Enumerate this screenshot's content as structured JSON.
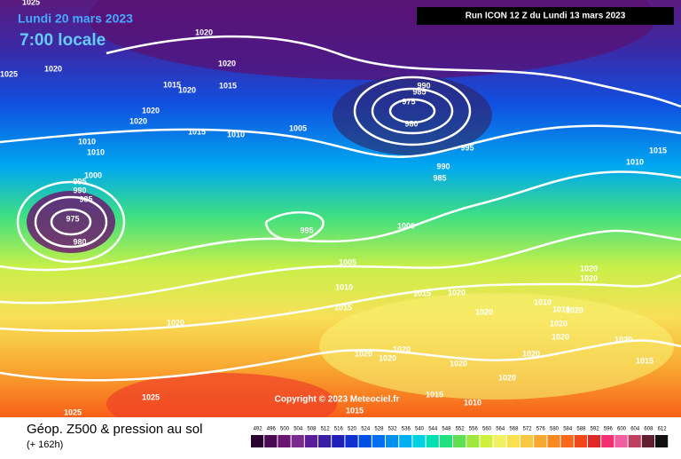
{
  "header": {
    "date": "Lundi 20 mars 2023",
    "time": "7:00 locale",
    "run": "Run ICON 12 Z du Lundi 13 mars 2023"
  },
  "copyright": "Copyright © 2023 Meteociel.fr",
  "footer": {
    "title": "Géop. Z500 & pression au sol",
    "lead": "(+ 162h)"
  },
  "isobar_labels": [
    "1025",
    "1020",
    "1020",
    "1025",
    "1020",
    "1015",
    "1020",
    "1015",
    "1020",
    "1020",
    "1015",
    "1010",
    "1005",
    "1010",
    "1010",
    "1000",
    "995",
    "990",
    "985",
    "975",
    "980",
    "990",
    "985",
    "975",
    "980",
    "995",
    "990",
    "985",
    "995",
    "1000",
    "1005",
    "1010",
    "1015",
    "1015",
    "1020",
    "1020",
    "1020",
    "1020",
    "1010",
    "1015",
    "1020",
    "1020",
    "1020",
    "1020",
    "1020",
    "1020",
    "1020",
    "1020",
    "1020",
    "1015",
    "1020",
    "1015",
    "1010",
    "1015",
    "1025",
    "1025",
    "1010",
    "1010",
    "1020"
  ],
  "legend": {
    "labels": [
      492,
      496,
      500,
      504,
      508,
      512,
      516,
      520,
      524,
      528,
      532,
      536,
      540,
      544,
      548,
      552,
      556,
      560,
      564,
      568,
      572,
      576,
      580,
      584,
      588,
      592,
      596,
      600,
      604,
      608,
      612
    ],
    "colors": [
      "#2a0030",
      "#4a0a52",
      "#6a1670",
      "#7a2a8e",
      "#5a1e9a",
      "#3a1ea8",
      "#2020b8",
      "#1030d0",
      "#0050e8",
      "#0070f0",
      "#0090f0",
      "#00b0f0",
      "#00d0e0",
      "#00e0b0",
      "#20e080",
      "#60e050",
      "#a0e840",
      "#d0f040",
      "#f0f060",
      "#f8e050",
      "#f8c840",
      "#f8a830",
      "#f88820",
      "#f86818",
      "#f04818",
      "#e02828",
      "#f03070",
      "#f060a0",
      "#c04060",
      "#602030",
      "#101010"
    ]
  }
}
